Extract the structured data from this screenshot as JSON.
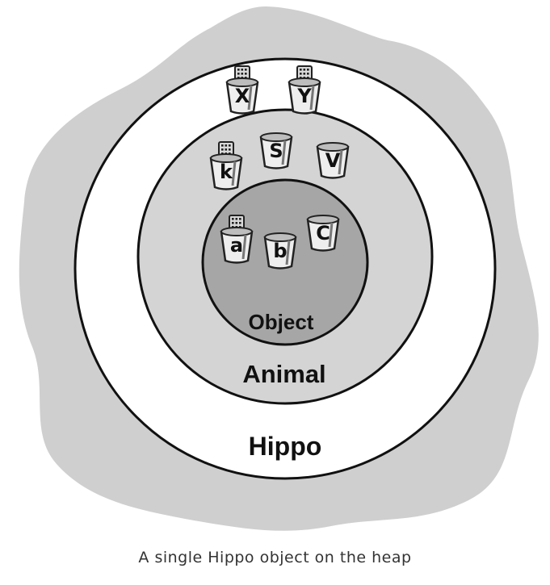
{
  "diagram": {
    "heap_fill": "#cfcfcf",
    "rings": [
      {
        "name": "hippo",
        "label": "Hippo",
        "fill": "#ffffff"
      },
      {
        "name": "animal",
        "label": "Animal",
        "fill": "#d4d4d4"
      },
      {
        "name": "object",
        "label": "Object",
        "fill": "#a6a6a6"
      }
    ],
    "cups": [
      {
        "letter": "X",
        "remote": true
      },
      {
        "letter": "Y",
        "remote": true
      },
      {
        "letter": "k",
        "remote": true
      },
      {
        "letter": "S",
        "remote": false
      },
      {
        "letter": "V",
        "remote": false
      },
      {
        "letter": "a",
        "remote": true
      },
      {
        "letter": "b",
        "remote": false
      },
      {
        "letter": "C",
        "remote": false
      }
    ]
  },
  "caption": "A single Hippo object on the heap"
}
